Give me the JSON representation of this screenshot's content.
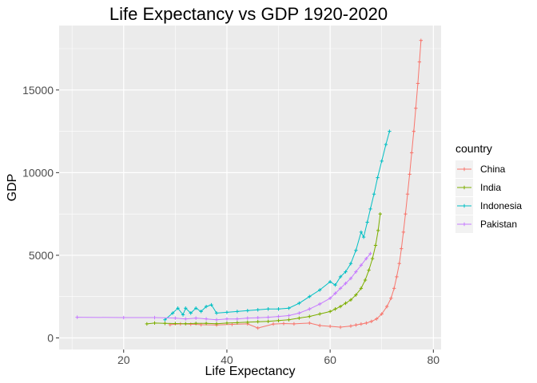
{
  "chart_data": {
    "type": "line",
    "title": "Life Expectancy vs GDP 1920-2020",
    "xlabel": "Life Expectancy",
    "ylabel": "GDP",
    "xlim": [
      7.5,
      81.5
    ],
    "ylim": [
      -700,
      18900
    ],
    "x_ticks": [
      20,
      40,
      60,
      80
    ],
    "y_ticks": [
      0,
      5000,
      10000,
      15000
    ],
    "grid": true,
    "legend_title": "country",
    "legend_position": "right",
    "series": [
      {
        "name": "China",
        "color": "#F8766D",
        "points": [
          [
            29,
            800
          ],
          [
            31,
            850
          ],
          [
            33,
            830
          ],
          [
            35,
            800
          ],
          [
            38,
            780
          ],
          [
            41,
            820
          ],
          [
            44,
            850
          ],
          [
            46,
            600
          ],
          [
            49,
            840
          ],
          [
            51,
            870
          ],
          [
            53,
            850
          ],
          [
            56,
            900
          ],
          [
            58,
            750
          ],
          [
            60,
            700
          ],
          [
            62,
            650
          ],
          [
            64,
            720
          ],
          [
            65,
            780
          ],
          [
            66,
            840
          ],
          [
            67,
            900
          ],
          [
            68,
            1000
          ],
          [
            69,
            1150
          ],
          [
            70,
            1450
          ],
          [
            71,
            1900
          ],
          [
            71.8,
            2400
          ],
          [
            72.4,
            3000
          ],
          [
            72.9,
            3700
          ],
          [
            73.4,
            4500
          ],
          [
            73.8,
            5400
          ],
          [
            74.2,
            6400
          ],
          [
            74.6,
            7500
          ],
          [
            75,
            8700
          ],
          [
            75.4,
            9900
          ],
          [
            75.8,
            11200
          ],
          [
            76.2,
            12500
          ],
          [
            76.6,
            13900
          ],
          [
            77,
            15400
          ],
          [
            77.3,
            16700
          ],
          [
            77.6,
            18000
          ]
        ]
      },
      {
        "name": "India",
        "color": "#7CAE00",
        "points": [
          [
            24.5,
            850
          ],
          [
            26,
            900
          ],
          [
            28,
            880
          ],
          [
            30,
            870
          ],
          [
            32,
            860
          ],
          [
            34,
            880
          ],
          [
            36,
            880
          ],
          [
            38,
            860
          ],
          [
            40,
            900
          ],
          [
            42,
            920
          ],
          [
            44,
            950
          ],
          [
            46,
            980
          ],
          [
            48,
            1000
          ],
          [
            50,
            1050
          ],
          [
            52,
            1100
          ],
          [
            54,
            1200
          ],
          [
            56,
            1300
          ],
          [
            58,
            1450
          ],
          [
            60,
            1600
          ],
          [
            61,
            1750
          ],
          [
            62,
            1900
          ],
          [
            63,
            2100
          ],
          [
            64,
            2300
          ],
          [
            65,
            2600
          ],
          [
            66,
            3000
          ],
          [
            66.8,
            3500
          ],
          [
            67.5,
            4100
          ],
          [
            68.2,
            4800
          ],
          [
            68.8,
            5600
          ],
          [
            69.3,
            6500
          ],
          [
            69.7,
            7500
          ]
        ]
      },
      {
        "name": "Indonesia",
        "color": "#00BFC4",
        "points": [
          [
            28,
            1100
          ],
          [
            29.5,
            1500
          ],
          [
            30.5,
            1800
          ],
          [
            31.5,
            1400
          ],
          [
            32,
            1800
          ],
          [
            33,
            1500
          ],
          [
            34,
            1800
          ],
          [
            35,
            1600
          ],
          [
            36,
            1900
          ],
          [
            37,
            2000
          ],
          [
            38,
            1500
          ],
          [
            40,
            1550
          ],
          [
            42,
            1600
          ],
          [
            44,
            1650
          ],
          [
            46,
            1700
          ],
          [
            48,
            1750
          ],
          [
            50,
            1750
          ],
          [
            52,
            1800
          ],
          [
            54,
            2100
          ],
          [
            56,
            2500
          ],
          [
            58,
            2900
          ],
          [
            60,
            3400
          ],
          [
            61,
            3200
          ],
          [
            62,
            3700
          ],
          [
            63,
            4000
          ],
          [
            64,
            4500
          ],
          [
            65,
            5300
          ],
          [
            66,
            6400
          ],
          [
            66.5,
            6100
          ],
          [
            67.2,
            7000
          ],
          [
            67.8,
            7800
          ],
          [
            68.5,
            8700
          ],
          [
            69.2,
            9700
          ],
          [
            70,
            10700
          ],
          [
            70.8,
            11700
          ],
          [
            71.5,
            12500
          ]
        ]
      },
      {
        "name": "Pakistan",
        "color": "#C77CFF",
        "points": [
          [
            11,
            1250
          ],
          [
            20,
            1230
          ],
          [
            26,
            1230
          ],
          [
            30,
            1200
          ],
          [
            32,
            1150
          ],
          [
            34,
            1200
          ],
          [
            36,
            1150
          ],
          [
            38,
            1100
          ],
          [
            40,
            1150
          ],
          [
            42,
            1150
          ],
          [
            44,
            1200
          ],
          [
            46,
            1220
          ],
          [
            48,
            1250
          ],
          [
            50,
            1300
          ],
          [
            52,
            1350
          ],
          [
            54,
            1500
          ],
          [
            56,
            1750
          ],
          [
            58,
            2050
          ],
          [
            60,
            2400
          ],
          [
            61,
            2700
          ],
          [
            62,
            3000
          ],
          [
            63,
            3300
          ],
          [
            64,
            3600
          ],
          [
            65,
            4000
          ],
          [
            66,
            4400
          ],
          [
            67,
            4800
          ],
          [
            67.8,
            5100
          ]
        ]
      }
    ]
  }
}
